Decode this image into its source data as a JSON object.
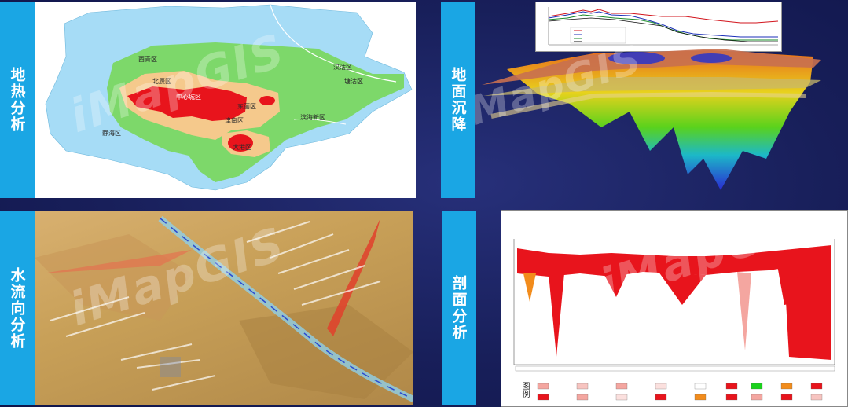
{
  "tabs": {
    "geothermal": "地热分析",
    "subsidence": "地面沉降",
    "water_flow": "水流向分析",
    "section": "剖面分析"
  },
  "watermark": "iMapGIS",
  "districts": [
    "西青区",
    "北辰区",
    "中心城区",
    "东丽区",
    "津南区",
    "滨海新区",
    "静海区",
    "大港区",
    "汉沽区",
    "塘沽区"
  ],
  "colors": {
    "tab": "#1aa6e4",
    "background": "#181f5a",
    "hot": "#e8141c",
    "warm": "#f5c98c",
    "mild": "#7dd86a",
    "cool": "#a6dcf6"
  },
  "section_chart": {
    "legend_title": "图例"
  }
}
